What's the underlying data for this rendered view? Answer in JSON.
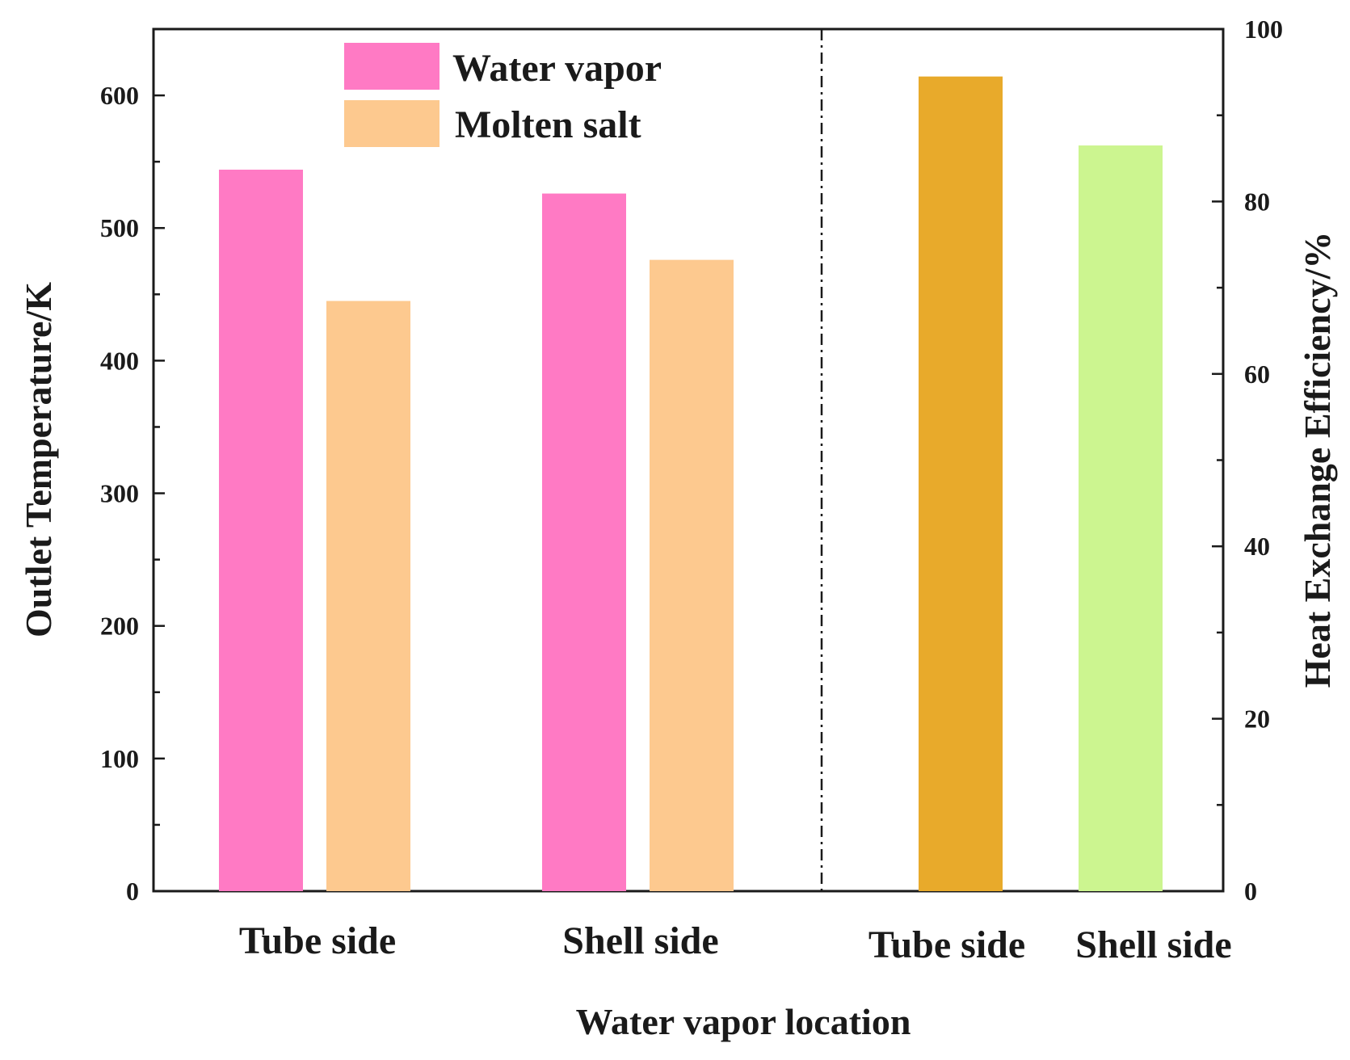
{
  "chart_data": {
    "type": "bar",
    "xlabel": "Water vapor location",
    "left_axis": {
      "label": "Outlet Temperature/K",
      "ylim": [
        0,
        650
      ],
      "ticks": [
        0,
        100,
        200,
        300,
        400,
        500,
        600
      ],
      "tick_labels": [
        "0",
        "100",
        "200",
        "300",
        "400",
        "500",
        "600"
      ],
      "minor_step": 50
    },
    "right_axis": {
      "label": "Heat Exchange Efficiency/%",
      "ylim": [
        0,
        100
      ],
      "ticks": [
        0,
        20,
        40,
        60,
        80,
        100
      ],
      "tick_labels": [
        "0",
        "20",
        "40",
        "60",
        "80",
        "100"
      ],
      "minor_step": 10
    },
    "temperature_panel": {
      "categories": [
        "Tube side",
        "Shell side"
      ],
      "series": [
        {
          "name": "Water vapor",
          "color": "#ff7ac4",
          "values": [
            544,
            526
          ]
        },
        {
          "name": "Molten salt",
          "color": "#fdc98f",
          "values": [
            445,
            476
          ]
        }
      ]
    },
    "efficiency_panel": {
      "categories": [
        "Tube side",
        "Shell side"
      ],
      "values": [
        94.5,
        86.5
      ],
      "colors": [
        "#e8aa2b",
        "#ccf590"
      ]
    },
    "divider": "dash-dot vertical line separating temperature and efficiency panels",
    "legend_position": "top-left"
  }
}
